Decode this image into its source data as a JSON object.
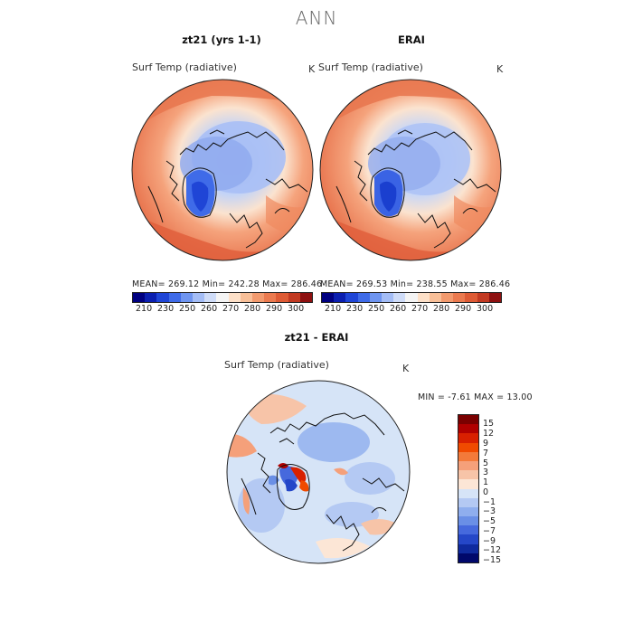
{
  "title": "ANN",
  "panels": [
    {
      "id": "p1",
      "title": "zt21 (yrs 1-1)",
      "field": "Surf Temp (radiative)",
      "unit": "K",
      "stats": "MEAN=  269.12    Min=  242.28    Max=  286.46"
    },
    {
      "id": "p2",
      "title": "ERAI",
      "field": "Surf Temp (radiative)",
      "unit": "K",
      "stats": "MEAN=  269.53    Min=  238.55    Max=  286.46"
    },
    {
      "id": "p3",
      "title": "zt21 - ERAI",
      "field": "Surf Temp (radiative)",
      "unit": "K",
      "stats": "MIN =   -7.61  MAX =   13.00"
    }
  ],
  "chart_data": [
    {
      "type": "heatmap",
      "title": "zt21 (yrs 1-1)",
      "subtitle": "Surf Temp (radiative)",
      "units": "K",
      "projection": "north polar stereographic",
      "mean": 269.12,
      "min": 242.28,
      "max": 286.46,
      "colorbar_ticks": [
        "210",
        "230",
        "250",
        "260",
        "270",
        "280",
        "290",
        "300"
      ]
    },
    {
      "type": "heatmap",
      "title": "ERAI",
      "subtitle": "Surf Temp (radiative)",
      "units": "K",
      "projection": "north polar stereographic",
      "mean": 269.53,
      "min": 238.55,
      "max": 286.46,
      "colorbar_ticks": [
        "210",
        "230",
        "250",
        "260",
        "270",
        "280",
        "290",
        "300"
      ]
    },
    {
      "type": "heatmap",
      "title": "zt21 - ERAI",
      "subtitle": "Surf Temp (radiative)",
      "units": "K",
      "projection": "north polar stereographic",
      "min": -7.61,
      "max": 13.0,
      "colorbar_ticks": [
        "15",
        "12",
        "9",
        "7",
        "5",
        "3",
        "1",
        "0",
        "−1",
        "−3",
        "−5",
        "−7",
        "−9",
        "−12",
        "−15"
      ]
    }
  ],
  "colors": {
    "abs_scale": [
      "#000080",
      "#0b1fb0",
      "#1f45d6",
      "#3f6be8",
      "#6f95f0",
      "#a4bdf6",
      "#cfdcf8",
      "#f4f4f4",
      "#fde0c8",
      "#f8bf98",
      "#f29a6e",
      "#eb7a4f",
      "#de5b35",
      "#c23a22",
      "#8e1111"
    ],
    "diff_scale": [
      "#7a0000",
      "#b00000",
      "#d82000",
      "#f04a00",
      "#f37a3a",
      "#f5a07a",
      "#f7c4a8",
      "#fce6d6",
      "#d6e4f7",
      "#b4c9f3",
      "#8faeee",
      "#6a8fe6",
      "#4669dd",
      "#2547c8",
      "#0f2a9e",
      "#00086b"
    ]
  }
}
